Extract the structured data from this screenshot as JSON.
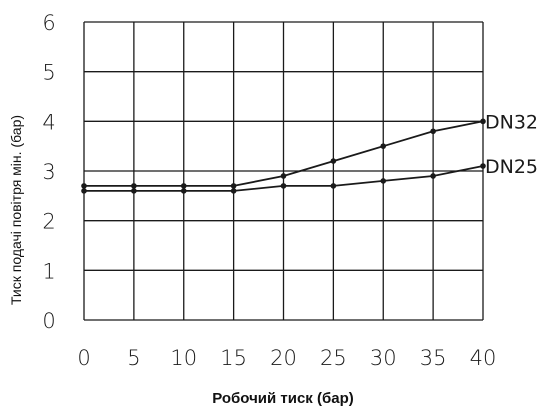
{
  "chart_data": {
    "type": "line",
    "title": "",
    "xlabel": "Робочий тиск (бар)",
    "ylabel": "Тиск подачі повітря мін. (бар)",
    "x": [
      0,
      5,
      10,
      15,
      20,
      25,
      30,
      35,
      40
    ],
    "xlim": [
      0,
      40
    ],
    "ylim": [
      0,
      6
    ],
    "x_ticks": [
      "0",
      "5",
      "10",
      "15",
      "20",
      "25",
      "30",
      "35",
      "40"
    ],
    "y_ticks": [
      "0",
      "1",
      "2",
      "3",
      "4",
      "5",
      "6"
    ],
    "grid": true,
    "legend": "series labels at right end of lines",
    "series": [
      {
        "name": "DN32",
        "values": [
          2.7,
          2.7,
          2.7,
          2.7,
          2.9,
          3.2,
          3.5,
          3.8,
          4.0
        ]
      },
      {
        "name": "DN25",
        "values": [
          2.6,
          2.6,
          2.6,
          2.6,
          2.7,
          2.7,
          2.8,
          2.9,
          3.1
        ]
      }
    ],
    "colors": {
      "line": "#1a1a1a",
      "grid": "#1a1a1a"
    }
  }
}
